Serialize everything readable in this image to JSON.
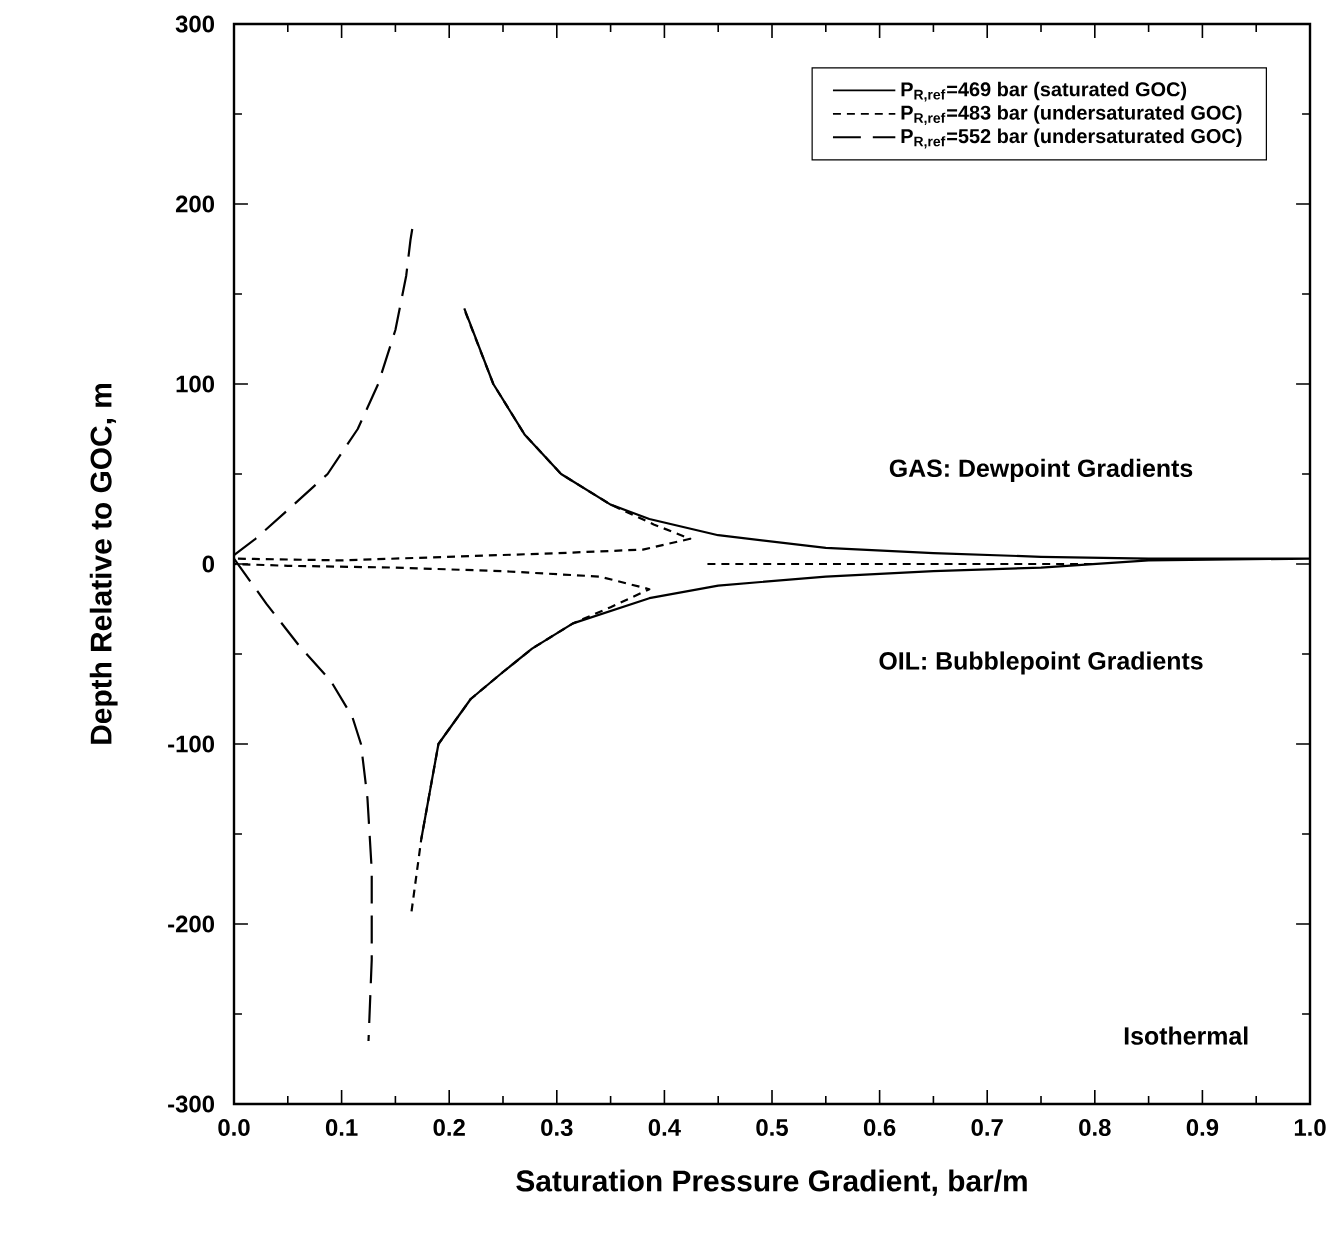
{
  "chart_data": {
    "type": "line",
    "xlabel": "Saturation Pressure Gradient, bar/m",
    "ylabel": "Depth Relative to GOC, m",
    "xlim": [
      0,
      1
    ],
    "ylim": [
      -300,
      300
    ],
    "xticks": [
      {
        "value": 0,
        "label": "0.0"
      },
      0.1,
      0.2,
      0.3,
      0.4,
      0.5,
      0.6,
      0.7,
      0.8,
      0.9,
      {
        "value": 1,
        "label": "1.0"
      }
    ],
    "yticks": [
      -300,
      -200,
      -100,
      0,
      100,
      200,
      300
    ],
    "legend": "top right",
    "series": [
      {
        "name": "P$_{R,ref}$=469 bar (saturated GOC)",
        "color": "#000000",
        "line_style": "solid",
        "x": [
          0.214,
          0.241,
          0.27,
          0.304,
          0.35,
          0.386,
          0.45,
          0.55,
          0.65,
          0.75,
          0.85,
          1.0,
          null,
          0.174,
          0.19,
          0.22,
          0.25,
          0.277,
          0.315,
          0.386,
          0.45,
          0.55,
          0.65,
          0.75,
          0.85,
          1.0
        ],
        "values": [
          142,
          100,
          72,
          50,
          33,
          25,
          16,
          9,
          6,
          4,
          3,
          3,
          null,
          -153,
          -100,
          -75,
          -60,
          -47,
          -33,
          -19,
          -12,
          -7,
          -4,
          -2,
          2,
          3
        ]
      },
      {
        "name": "P$_{R,ref}$=483 bar (undersaturated GOC)",
        "color": "#000000",
        "line_style": "dashed",
        "x": [
          0.215,
          0.241,
          0.27,
          0.304,
          0.35,
          0.39,
          0.424,
          0.38,
          0.3,
          0.2,
          0.1,
          0.0,
          null,
          0.165,
          0.174,
          0.19,
          0.22,
          0.25,
          0.277,
          0.315,
          0.35,
          0.386,
          0.34,
          0.25,
          0.15,
          0.05,
          0.0,
          null,
          0.44,
          0.8
        ],
        "values": [
          140,
          100,
          72,
          50,
          33,
          22,
          14,
          8,
          6,
          4,
          2,
          3,
          null,
          -193,
          -153,
          -100,
          -75,
          -60,
          -47,
          -33,
          -24,
          -14,
          -7,
          -4,
          -2,
          -1,
          0,
          null,
          0,
          0
        ]
      },
      {
        "name": "P$_{R,ref}$=552 bar (undersaturated GOC)",
        "color": "#000000",
        "line_style": "dashed",
        "x": [
          0.0,
          0.02,
          0.05,
          0.087,
          0.115,
          0.134,
          0.15,
          0.16,
          0.164,
          0.167,
          null,
          0.0,
          0.03,
          0.06,
          0.09,
          0.11,
          0.118,
          0.124,
          0.128,
          0.128,
          0.125
        ],
        "values": [
          5,
          14,
          30,
          50,
          75,
          100,
          130,
          160,
          180,
          191,
          null,
          3,
          -22,
          -45,
          -65,
          -85,
          -100,
          -130,
          -170,
          -220,
          -265
        ]
      }
    ],
    "annotations": [
      "GAS: Dewpoint Gradients",
      "OIL: Bubblepoint Gradients",
      "Isothermal"
    ]
  }
}
